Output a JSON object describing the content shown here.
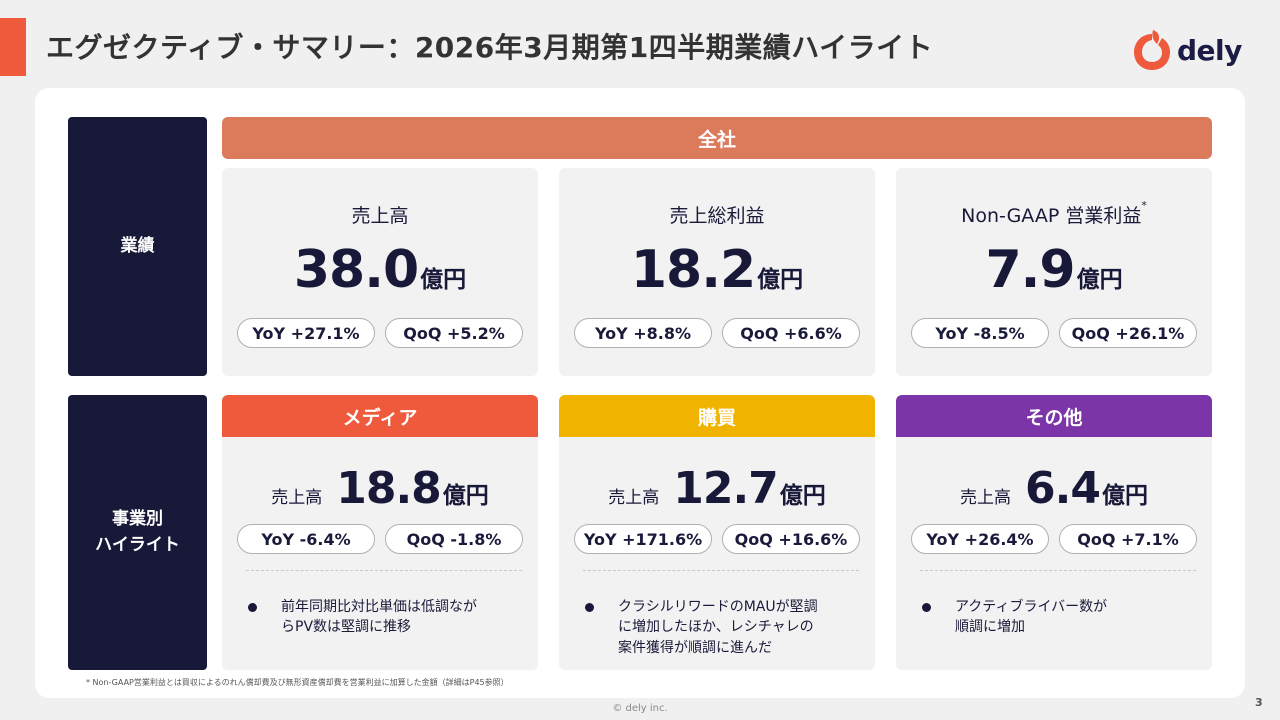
{
  "header": {
    "title": "エグゼクティブ・サマリー：2026年3月期第1四半期業績ハイライト",
    "logo_text": "dely",
    "accent_color": "#ef5a3c"
  },
  "row_labels": {
    "results": "業績",
    "segment": "事業別\nハイライト"
  },
  "company": {
    "banner": "全社",
    "banner_color": "#dc7a5c",
    "metrics": [
      {
        "title": "売上高",
        "title_sup": "",
        "value": "38.0",
        "unit": "億円",
        "yoy": "YoY +27.1%",
        "qoq": "QoQ +5.2%"
      },
      {
        "title": "売上総利益",
        "title_sup": "",
        "value": "18.2",
        "unit": "億円",
        "yoy": "YoY +8.8%",
        "qoq": "QoQ +6.6%"
      },
      {
        "title": "Non-GAAP 営業利益",
        "title_sup": "*",
        "value": "7.9",
        "unit": "億円",
        "yoy": "YoY -8.5%",
        "qoq": "QoQ +26.1%"
      }
    ]
  },
  "segments": [
    {
      "name": "メディア",
      "color": "#ef5a3c",
      "sales_label": "売上高",
      "value": "18.8",
      "unit": "億円",
      "yoy": "YoY -6.4%",
      "qoq": "QoQ -1.8%",
      "bullet": "前年同期比対比単価は低調なが\nらPV数は堅調に推移"
    },
    {
      "name": "購買",
      "color": "#f0b400",
      "sales_label": "売上高",
      "value": "12.7",
      "unit": "億円",
      "yoy": "YoY +171.6%",
      "qoq": "QoQ +16.6%",
      "bullet": "クラシルリワードのMAUが堅調\nに増加したほか、レシチャレの\n案件獲得が順調に進んだ"
    },
    {
      "name": "その他",
      "color": "#7b35a8",
      "sales_label": "売上高",
      "value": "6.4",
      "unit": "億円",
      "yoy": "YoY +26.4%",
      "qoq": "QoQ +7.1%",
      "bullet": "アクティブライバー数が\n順調に増加"
    }
  ],
  "footer": {
    "footnote": "* Non-GAAP営業利益とは買収によるのれん償却費及び無形資産償却費を営業利益に加算した金額（詳細はP45参照）",
    "copyright": "© dely inc.",
    "page_number": "3"
  }
}
